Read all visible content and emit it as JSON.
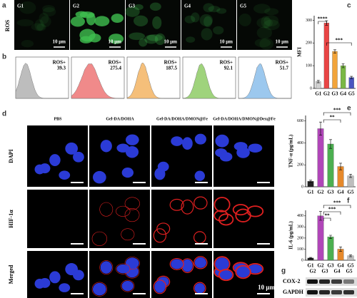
{
  "panels": [
    "a",
    "b",
    "c",
    "d",
    "e",
    "f",
    "g"
  ],
  "a": {
    "row_label": "ROS",
    "images": [
      "G1",
      "G2",
      "G3",
      "G4",
      "G5"
    ],
    "scale_bar": "10 μm"
  },
  "b": {
    "label": "ROS+",
    "values": [
      39.3,
      275.4,
      187.5,
      92.1,
      51.7
    ],
    "colors": [
      "#bdbdbd",
      "#f08a8a",
      "#f5bf7a",
      "#9fd37c",
      "#9cc8ee"
    ]
  },
  "d": {
    "columns": [
      "PBS",
      "Gel-DA/DOHA",
      "Gel-DA/DOHA/DMON@Fe",
      "Gel-DA/DOHA/DMON@Dex@Fe"
    ],
    "rows": [
      "DAPI",
      "HIF-1α",
      "Merged"
    ],
    "scale_bar": "10 μm"
  },
  "g": {
    "columns": [
      "G2",
      "G3",
      "G4",
      "G5"
    ],
    "rows": [
      "COX-2",
      "GAPDH"
    ]
  },
  "chart_data": [
    {
      "type": "bar",
      "ylabel": "MFI",
      "categories": [
        "G1",
        "G2",
        "G3",
        "G4",
        "G5"
      ],
      "values": [
        30,
        288,
        163,
        100,
        48
      ],
      "errors": [
        5,
        10,
        7,
        9,
        5
      ],
      "colors": [
        "#d0d0d0",
        "#e94545",
        "#f2a43a",
        "#7ab845",
        "#4a55c0"
      ],
      "ylim": [
        0,
        320
      ],
      "yticks": [
        0,
        100,
        200,
        300
      ],
      "annotations": [
        "****",
        "***"
      ]
    },
    {
      "type": "bar",
      "ylabel": "TNF-α (pg/mL)",
      "categories": [
        "G1",
        "G2",
        "G3",
        "G4",
        "G5"
      ],
      "values": [
        50,
        530,
        390,
        185,
        100
      ],
      "errors": [
        10,
        60,
        40,
        30,
        15
      ],
      "colors": [
        "#222222",
        "#b046b8",
        "#4caf50",
        "#e6892b",
        "#bdbdbd"
      ],
      "ylim": [
        0,
        650
      ],
      "yticks": [
        0,
        200,
        400,
        600
      ],
      "annotations": [
        "***",
        "**"
      ]
    },
    {
      "type": "bar",
      "ylabel": "IL-6 (pg/mL)",
      "categories": [
        "G1",
        "G2",
        "G3",
        "G4",
        "G5"
      ],
      "values": [
        20,
        400,
        210,
        100,
        40
      ],
      "errors": [
        5,
        40,
        15,
        20,
        8
      ],
      "colors": [
        "#222222",
        "#b046b8",
        "#4caf50",
        "#e6892b",
        "#bdbdbd"
      ],
      "ylim": [
        0,
        450
      ],
      "yticks": [
        0,
        100,
        200,
        300,
        400
      ],
      "annotations": [
        "**",
        "***",
        "***"
      ]
    }
  ]
}
